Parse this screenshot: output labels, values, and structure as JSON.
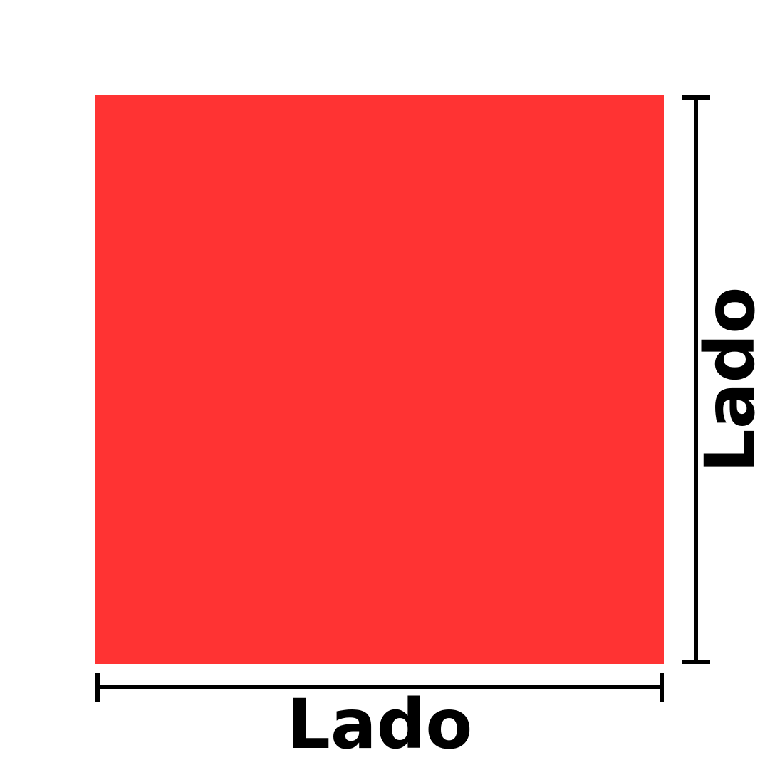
{
  "diagram": {
    "shape": "square",
    "fill_color": "#ff3333",
    "line_color": "#000000",
    "bottom_label": "Lado",
    "right_label": "Lado"
  }
}
